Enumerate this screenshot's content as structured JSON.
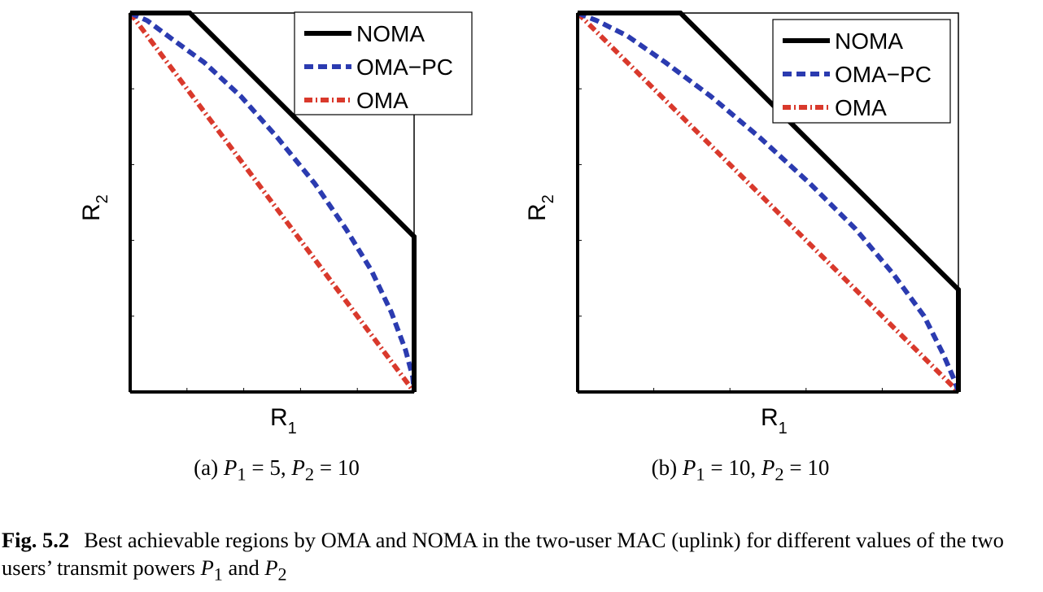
{
  "chart_data": [
    {
      "type": "line",
      "panel": "a",
      "xlabel": "R",
      "xlabel_sub": "1",
      "ylabel": "R",
      "ylabel_sub": "2",
      "xlim": [
        0,
        1
      ],
      "ylim": [
        0,
        1
      ],
      "ticks_shown": false,
      "legend": "top-right",
      "series": [
        {
          "name": "NOMA",
          "color": "#000000",
          "style": "solid",
          "x": [
            0,
            0.21,
            1,
            1
          ],
          "y": [
            1,
            1,
            0.41,
            0
          ]
        },
        {
          "name": "OMA−PC",
          "color": "#2b3bb0",
          "style": "dashed",
          "x": [
            0,
            0.06,
            0.15,
            0.26,
            0.39,
            0.52,
            0.65,
            0.76,
            0.85,
            0.92,
            0.97,
            0.995,
            1.0
          ],
          "y": [
            1,
            0.98,
            0.93,
            0.87,
            0.78,
            0.67,
            0.55,
            0.43,
            0.32,
            0.21,
            0.11,
            0.04,
            0
          ]
        },
        {
          "name": "OMA",
          "color": "#d9392c",
          "style": "dashdot",
          "x": [
            0,
            1
          ],
          "y": [
            1,
            0
          ]
        }
      ],
      "subcaption": {
        "prefix": "(a) ",
        "p1": "P",
        "p1_sub": "1",
        "eq1": " = 5, ",
        "p2": "P",
        "p2_sub": "2",
        "eq2": " = 10"
      }
    },
    {
      "type": "line",
      "panel": "b",
      "xlabel": "R",
      "xlabel_sub": "1",
      "ylabel": "R",
      "ylabel_sub": "2",
      "xlim": [
        0,
        1
      ],
      "ylim": [
        0,
        1
      ],
      "ticks_shown": false,
      "legend": "top-right",
      "series": [
        {
          "name": "NOMA",
          "color": "#000000",
          "style": "solid",
          "x": [
            0,
            0.27,
            1,
            1
          ],
          "y": [
            1,
            1,
            0.27,
            0
          ]
        },
        {
          "name": "OMA−PC",
          "color": "#2b3bb0",
          "style": "dashed",
          "x": [
            0,
            0.05,
            0.13,
            0.23,
            0.35,
            0.48,
            0.61,
            0.73,
            0.83,
            0.91,
            0.96,
            0.99,
            1.0
          ],
          "y": [
            1,
            0.98,
            0.94,
            0.87,
            0.78,
            0.67,
            0.55,
            0.43,
            0.31,
            0.2,
            0.1,
            0.03,
            0
          ]
        },
        {
          "name": "OMA",
          "color": "#d9392c",
          "style": "dashdot",
          "x": [
            0,
            1
          ],
          "y": [
            1,
            0
          ]
        }
      ],
      "subcaption": {
        "prefix": "(b) ",
        "p1": "P",
        "p1_sub": "1",
        "eq1": " = 10, ",
        "p2": "P",
        "p2_sub": "2",
        "eq2": " = 10"
      }
    }
  ],
  "figure_caption": {
    "label": "Fig. 5.2",
    "text": "Best achievable regions by OMA and NOMA in the two-user MAC (uplink) for different values of the two users’ transmit powers ",
    "p1": "P",
    "p1_sub": "1",
    "and": " and ",
    "p2": "P",
    "p2_sub": "2"
  }
}
